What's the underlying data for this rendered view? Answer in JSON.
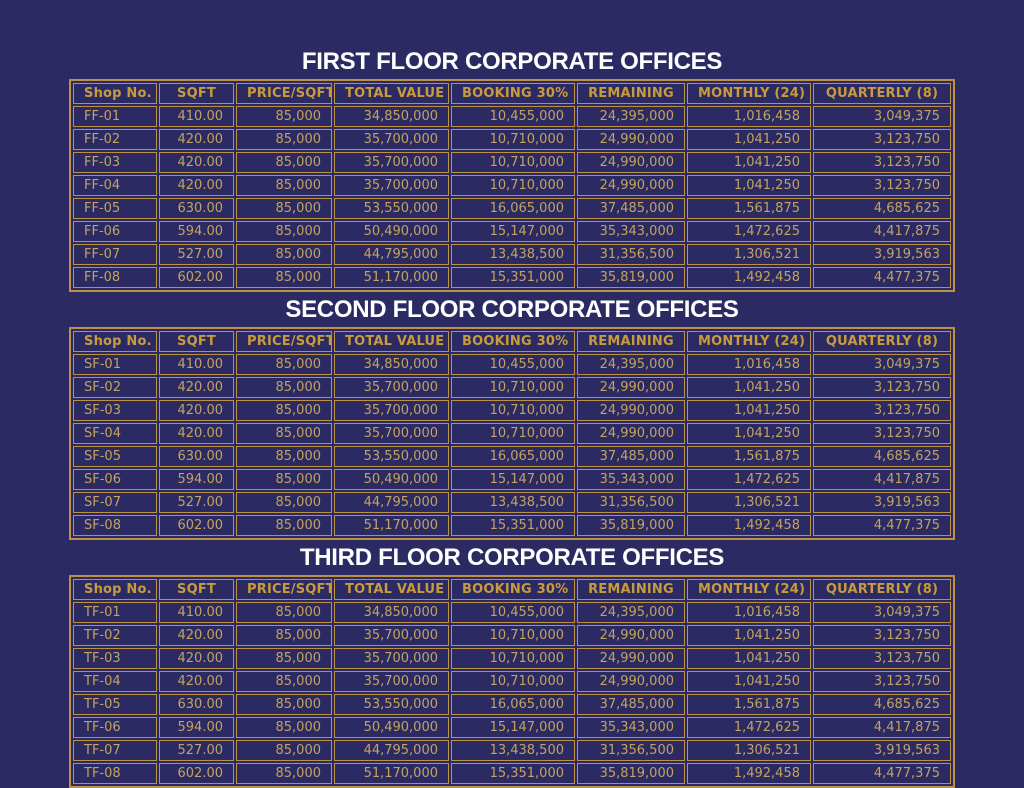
{
  "colors": {
    "background": "#2b2a63",
    "table_border_gold": "#bd9141",
    "header_text_gold": "#c89b3e",
    "value_text_gold": "#c3a35f",
    "title_white": "#ffffff"
  },
  "columns": [
    "Shop No.",
    "SQFT",
    "PRICE/SQFT",
    "TOTAL VALUE",
    "BOOKING 30%",
    "REMAINING",
    "MONTHLY (24)",
    "QUARTERLY (8)"
  ],
  "tables": [
    {
      "title": "FIRST FLOOR CORPORATE OFFICES",
      "rows": [
        [
          "FF-01",
          "410.00",
          "85,000",
          "34,850,000",
          "10,455,000",
          "24,395,000",
          "1,016,458",
          "3,049,375"
        ],
        [
          "FF-02",
          "420.00",
          "85,000",
          "35,700,000",
          "10,710,000",
          "24,990,000",
          "1,041,250",
          "3,123,750"
        ],
        [
          "FF-03",
          "420.00",
          "85,000",
          "35,700,000",
          "10,710,000",
          "24,990,000",
          "1,041,250",
          "3,123,750"
        ],
        [
          "FF-04",
          "420.00",
          "85,000",
          "35,700,000",
          "10,710,000",
          "24,990,000",
          "1,041,250",
          "3,123,750"
        ],
        [
          "FF-05",
          "630.00",
          "85,000",
          "53,550,000",
          "16,065,000",
          "37,485,000",
          "1,561,875",
          "4,685,625"
        ],
        [
          "FF-06",
          "594.00",
          "85,000",
          "50,490,000",
          "15,147,000",
          "35,343,000",
          "1,472,625",
          "4,417,875"
        ],
        [
          "FF-07",
          "527.00",
          "85,000",
          "44,795,000",
          "13,438,500",
          "31,356,500",
          "1,306,521",
          "3,919,563"
        ],
        [
          "FF-08",
          "602.00",
          "85,000",
          "51,170,000",
          "15,351,000",
          "35,819,000",
          "1,492,458",
          "4,477,375"
        ]
      ]
    },
    {
      "title": "SECOND FLOOR CORPORATE OFFICES",
      "rows": [
        [
          "SF-01",
          "410.00",
          "85,000",
          "34,850,000",
          "10,455,000",
          "24,395,000",
          "1,016,458",
          "3,049,375"
        ],
        [
          "SF-02",
          "420.00",
          "85,000",
          "35,700,000",
          "10,710,000",
          "24,990,000",
          "1,041,250",
          "3,123,750"
        ],
        [
          "SF-03",
          "420.00",
          "85,000",
          "35,700,000",
          "10,710,000",
          "24,990,000",
          "1,041,250",
          "3,123,750"
        ],
        [
          "SF-04",
          "420.00",
          "85,000",
          "35,700,000",
          "10,710,000",
          "24,990,000",
          "1,041,250",
          "3,123,750"
        ],
        [
          "SF-05",
          "630.00",
          "85,000",
          "53,550,000",
          "16,065,000",
          "37,485,000",
          "1,561,875",
          "4,685,625"
        ],
        [
          "SF-06",
          "594.00",
          "85,000",
          "50,490,000",
          "15,147,000",
          "35,343,000",
          "1,472,625",
          "4,417,875"
        ],
        [
          "SF-07",
          "527.00",
          "85,000",
          "44,795,000",
          "13,438,500",
          "31,356,500",
          "1,306,521",
          "3,919,563"
        ],
        [
          "SF-08",
          "602.00",
          "85,000",
          "51,170,000",
          "15,351,000",
          "35,819,000",
          "1,492,458",
          "4,477,375"
        ]
      ]
    },
    {
      "title": "THIRD FLOOR CORPORATE OFFICES",
      "rows": [
        [
          "TF-01",
          "410.00",
          "85,000",
          "34,850,000",
          "10,455,000",
          "24,395,000",
          "1,016,458",
          "3,049,375"
        ],
        [
          "TF-02",
          "420.00",
          "85,000",
          "35,700,000",
          "10,710,000",
          "24,990,000",
          "1,041,250",
          "3,123,750"
        ],
        [
          "TF-03",
          "420.00",
          "85,000",
          "35,700,000",
          "10,710,000",
          "24,990,000",
          "1,041,250",
          "3,123,750"
        ],
        [
          "TF-04",
          "420.00",
          "85,000",
          "35,700,000",
          "10,710,000",
          "24,990,000",
          "1,041,250",
          "3,123,750"
        ],
        [
          "TF-05",
          "630.00",
          "85,000",
          "53,550,000",
          "16,065,000",
          "37,485,000",
          "1,561,875",
          "4,685,625"
        ],
        [
          "TF-06",
          "594.00",
          "85,000",
          "50,490,000",
          "15,147,000",
          "35,343,000",
          "1,472,625",
          "4,417,875"
        ],
        [
          "TF-07",
          "527.00",
          "85,000",
          "44,795,000",
          "13,438,500",
          "31,356,500",
          "1,306,521",
          "3,919,563"
        ],
        [
          "TF-08",
          "602.00",
          "85,000",
          "51,170,000",
          "15,351,000",
          "35,819,000",
          "1,492,458",
          "4,477,375"
        ]
      ]
    }
  ]
}
